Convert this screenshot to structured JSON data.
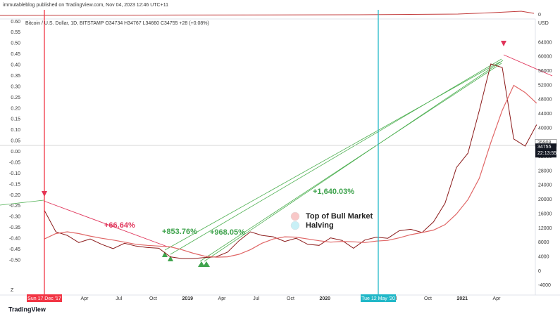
{
  "chart_data": {
    "type": "line",
    "header": "immutableblog published on TradingView.com, Nov 04, 2023 12:46 UTC+11",
    "title": "Bitcoin / U.S. Dollar, 1D, BITSTAMP  O34734  H34767  L34660  C34755  +28 (+0.08%)",
    "currency": "USD",
    "pane_zero": "0",
    "categories": [
      null,
      null,
      null,
      null,
      "Apr",
      null,
      null,
      "Jul",
      null,
      null,
      "Oct",
      null,
      null,
      "2019",
      null,
      null,
      "Apr",
      null,
      null,
      "Jul",
      null,
      null,
      "Oct",
      null,
      null,
      "2020",
      null,
      null,
      null,
      null,
      null,
      "Jul",
      null,
      null,
      "Oct",
      null,
      null,
      "2021",
      null,
      null,
      "Apr",
      null,
      null,
      null
    ],
    "series": [
      {
        "name": "Price",
        "color": "#8b1a1a",
        "values": [
          17000,
          11000,
          10000,
          8000,
          9000,
          7500,
          6300,
          7800,
          7000,
          6600,
          6400,
          4000,
          3500,
          3500,
          3800,
          4000,
          5300,
          8500,
          11000,
          10000,
          9600,
          8300,
          9200,
          7500,
          7200,
          9300,
          8600,
          6400,
          8700,
          9500,
          9200,
          11300,
          11700,
          10800,
          13800,
          19000,
          29000,
          33000,
          45000,
          58000,
          57000,
          37000,
          35000,
          41000
        ]
      },
      {
        "name": "Moving Average",
        "color": "#e06666",
        "values": [
          9000,
          10500,
          11000,
          10500,
          9800,
          9200,
          8700,
          8100,
          7500,
          7200,
          7000,
          6800,
          6000,
          5000,
          4200,
          3900,
          4000,
          4700,
          6000,
          7800,
          9000,
          9600,
          9500,
          9000,
          8500,
          8100,
          8300,
          8200,
          8000,
          8400,
          8600,
          9300,
          10200,
          10800,
          11500,
          13000,
          16000,
          20000,
          26000,
          36000,
          45000,
          52000,
          50000,
          47000
        ]
      }
    ],
    "ylim": [
      -6700,
      70000
    ],
    "yticks": [
      64000,
      60000,
      56000,
      52000,
      48000,
      44000,
      40000,
      36000,
      32000,
      28000,
      24000,
      20000,
      16000,
      12000,
      8000,
      4000,
      0,
      -4000
    ],
    "y2lim": [
      -0.66,
      0.603
    ],
    "y2ticks": [
      {
        "value": 0.6,
        "label": "0.60"
      },
      {
        "value": 0.55,
        "label": "0.55"
      },
      {
        "value": 0.5,
        "label": "0.50"
      },
      {
        "value": 0.45,
        "label": "0.45"
      },
      {
        "value": 0.4,
        "label": "0.40"
      },
      {
        "value": 0.35,
        "label": "0.35"
      },
      {
        "value": 0.3,
        "label": "0.30"
      },
      {
        "value": 0.25,
        "label": "0.25"
      },
      {
        "value": 0.2,
        "label": "0.20"
      },
      {
        "value": 0.15,
        "label": "0.15"
      },
      {
        "value": 0.1,
        "label": "0.10"
      },
      {
        "value": 0.05,
        "label": "0.05"
      },
      {
        "value": 0,
        "label": "0.00"
      },
      {
        "value": -0.05,
        "label": "-0.05"
      },
      {
        "value": -0.1,
        "label": "-0.10"
      },
      {
        "value": -0.15,
        "label": "-0.15"
      },
      {
        "value": -0.2,
        "label": "-0.20"
      },
      {
        "value": -0.25,
        "label": "-0.25"
      },
      {
        "value": -0.3,
        "label": "-0.30"
      },
      {
        "value": -0.35,
        "label": "-0.35"
      },
      {
        "value": -0.4,
        "label": "-0.40"
      },
      {
        "value": -0.45,
        "label": "-0.45"
      },
      {
        "value": -0.5,
        "label": "-0.50"
      }
    ],
    "high_price": 35908,
    "last_price": 34755,
    "countdown": "22:13:55",
    "markers": [
      {
        "label": "Sun 17 Dec '17",
        "color": "#f23645"
      },
      {
        "label": "Tue 12 May '20",
        "color": "#22b8c8"
      }
    ],
    "annotations": [
      {
        "text": "+66.64%",
        "color": "#e0345a"
      },
      {
        "text": "+853.76%",
        "color": "#3fa34d"
      },
      {
        "text": "+968.05%",
        "color": "#3fa34d"
      },
      {
        "text": "+1,640.03%",
        "color": "#3fa34d"
      }
    ],
    "legend": [
      {
        "name": "Top of Bull Market",
        "color": "#f8c8c8"
      },
      {
        "name": "Halving",
        "color": "#c8f0f6"
      }
    ],
    "corner_label": "Z",
    "brand": "TradingView"
  }
}
